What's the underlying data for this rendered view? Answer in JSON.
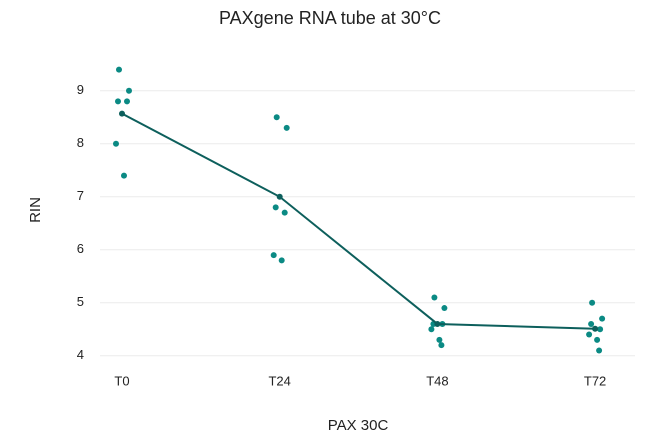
{
  "chart_data": {
    "type": "strip",
    "title": "PAXgene RNA tube at 30°C",
    "x_label": "PAX 30C",
    "y_label": "RIN",
    "categories": [
      "T0",
      "T24",
      "T48",
      "T72"
    ],
    "groups": [
      [
        9.4,
        9.0,
        8.8,
        8.8,
        8.0,
        7.4
      ],
      [
        8.5,
        8.3,
        6.8,
        6.7,
        5.9,
        5.8
      ],
      [
        5.1,
        4.9,
        4.6,
        4.6,
        4.5,
        4.3,
        4.2
      ],
      [
        5.0,
        4.7,
        4.6,
        4.5,
        4.4,
        4.3,
        4.1
      ]
    ],
    "mean_values": [
      8.57,
      7.0,
      4.6,
      4.51
    ],
    "point_color": "#0b8a84",
    "line_color": "#0d5f5c",
    "ylim": [
      3.75,
      9.6
    ],
    "yticks": [
      4,
      5,
      6,
      7,
      8,
      9
    ],
    "grid": true
  }
}
